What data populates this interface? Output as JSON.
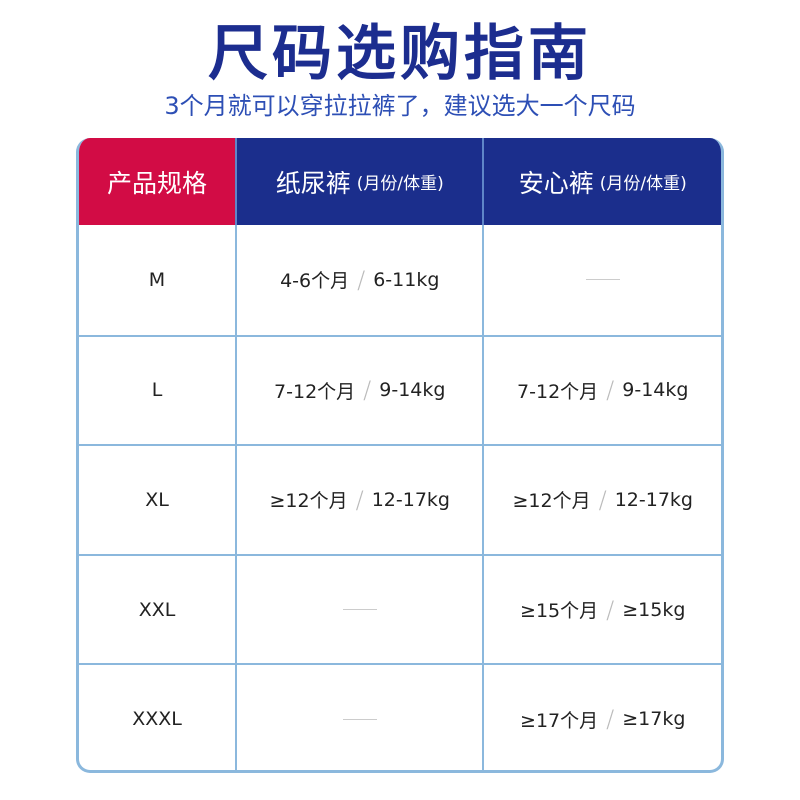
{
  "title": "尺码选购指南",
  "subtitle": "3个月就可以穿拉拉裤了，建议选大一个尺码",
  "colors": {
    "title": "#1c2d8f",
    "header_red": "#d20c45",
    "header_blue": "#1b2e8c",
    "border": "#8bb8dd"
  },
  "table": {
    "headers": [
      {
        "label": "产品规格",
        "sub": ""
      },
      {
        "label": "纸尿裤",
        "sub": "(月份/体重)"
      },
      {
        "label": "安心裤",
        "sub": "(月份/体重)"
      }
    ],
    "rows": [
      {
        "size": "M",
        "diaper": {
          "age": "4-6个月",
          "weight": "6-11kg"
        },
        "pants": null
      },
      {
        "size": "L",
        "diaper": {
          "age": "7-12个月",
          "weight": "9-14kg"
        },
        "pants": {
          "age": "7-12个月",
          "weight": "9-14kg"
        }
      },
      {
        "size": "XL",
        "diaper": {
          "age": "≥12个月",
          "weight": "12-17kg"
        },
        "pants": {
          "age": "≥12个月",
          "weight": "12-17kg"
        }
      },
      {
        "size": "XXL",
        "diaper": null,
        "pants": {
          "age": "≥15个月",
          "weight": "≥15kg"
        }
      },
      {
        "size": "XXXL",
        "diaper": null,
        "pants": {
          "age": "≥17个月",
          "weight": "≥17kg"
        }
      }
    ]
  }
}
